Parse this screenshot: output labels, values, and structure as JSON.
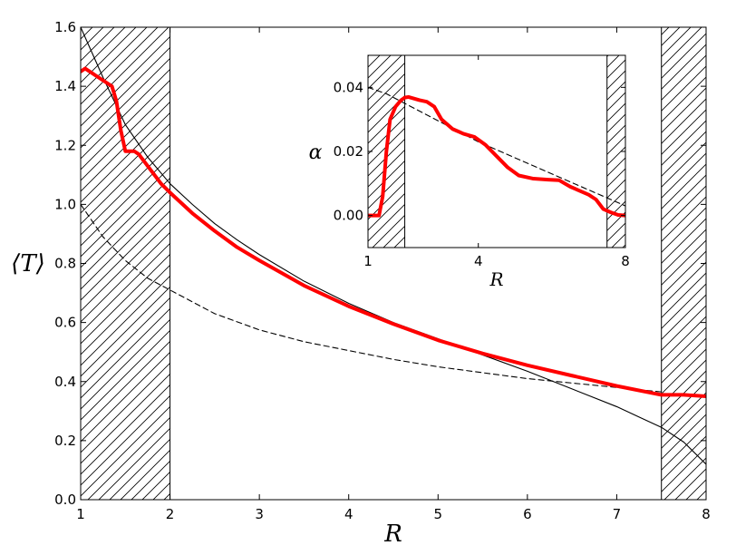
{
  "chart_data": [
    {
      "type": "line",
      "name": "main-plot",
      "xlabel": "R",
      "ylabel": "⟨T⟩",
      "xlim": [
        1,
        8
      ],
      "ylim": [
        0,
        1.6
      ],
      "xticks": [
        1,
        2,
        3,
        4,
        5,
        6,
        7,
        8
      ],
      "xtick_labels": [
        "1",
        "2",
        "3",
        "4",
        "5",
        "6",
        "7",
        "8"
      ],
      "yticks": [
        0.0,
        0.2,
        0.4,
        0.6,
        0.8,
        1.0,
        1.2,
        1.4,
        1.6
      ],
      "ytick_labels": [
        "0.0",
        "0.2",
        "0.4",
        "0.6",
        "0.8",
        "1.0",
        "1.2",
        "1.4",
        "1.6"
      ],
      "grid": false,
      "hatched_regions": [
        [
          1,
          2
        ],
        [
          7.5,
          8
        ]
      ],
      "series": [
        {
          "style": "thin-solid-black",
          "color": "#000000",
          "x": [
            1.0,
            1.25,
            1.5,
            1.75,
            2.0,
            2.25,
            2.5,
            2.75,
            3.0,
            3.5,
            4.0,
            4.5,
            5.0,
            5.5,
            6.0,
            6.5,
            7.0,
            7.25,
            7.5,
            7.75,
            8.0
          ],
          "y": [
            1.6,
            1.43,
            1.27,
            1.16,
            1.07,
            1.0,
            0.935,
            0.88,
            0.83,
            0.74,
            0.665,
            0.6,
            0.545,
            0.49,
            0.435,
            0.375,
            0.315,
            0.28,
            0.245,
            0.195,
            0.12
          ]
        },
        {
          "style": "thin-dashed-black",
          "color": "#000000",
          "x": [
            1.0,
            1.25,
            1.5,
            1.75,
            2.0,
            2.5,
            3.0,
            3.5,
            4.0,
            4.5,
            5.0,
            5.5,
            6.0,
            6.5,
            7.0,
            7.5
          ],
          "y": [
            1.0,
            0.89,
            0.81,
            0.75,
            0.71,
            0.63,
            0.575,
            0.535,
            0.505,
            0.475,
            0.45,
            0.43,
            0.41,
            0.395,
            0.38,
            0.365
          ]
        },
        {
          "style": "thick-solid-red",
          "color": "#ff0000",
          "x": [
            1.0,
            1.05,
            1.1,
            1.2,
            1.3,
            1.35,
            1.4,
            1.45,
            1.5,
            1.55,
            1.6,
            1.65,
            1.7,
            1.8,
            1.9,
            2.0,
            2.25,
            2.5,
            2.75,
            3.0,
            3.5,
            4.0,
            4.5,
            5.0,
            5.5,
            6.0,
            6.5,
            7.0,
            7.5,
            7.75,
            8.0
          ],
          "y": [
            1.45,
            1.46,
            1.45,
            1.43,
            1.41,
            1.4,
            1.35,
            1.25,
            1.18,
            1.18,
            1.18,
            1.17,
            1.15,
            1.11,
            1.07,
            1.04,
            0.97,
            0.91,
            0.855,
            0.81,
            0.725,
            0.655,
            0.595,
            0.54,
            0.495,
            0.455,
            0.42,
            0.385,
            0.355,
            0.355,
            0.35
          ]
        }
      ]
    },
    {
      "type": "line",
      "name": "inset-plot",
      "xlabel": "R",
      "ylabel": "α",
      "xlim": [
        1,
        8
      ],
      "ylim": [
        -0.01,
        0.05
      ],
      "xticks": [
        1,
        4,
        8
      ],
      "xtick_labels": [
        "1",
        "4",
        "8"
      ],
      "yticks": [
        0.0,
        0.02,
        0.04
      ],
      "ytick_labels": [
        "0.00",
        "0.02",
        "0.04"
      ],
      "grid": false,
      "hatched_regions": [
        [
          1,
          2
        ],
        [
          7.5,
          8
        ]
      ],
      "series": [
        {
          "style": "thin-dashed-black",
          "color": "#000000",
          "x": [
            1.0,
            1.5,
            2.0,
            2.5,
            3.0,
            3.5,
            4.0,
            4.5,
            5.0,
            5.5,
            6.0,
            6.5,
            7.0,
            7.5,
            8.0
          ],
          "y": [
            0.04,
            0.038,
            0.035,
            0.032,
            0.029,
            0.026,
            0.023,
            0.0205,
            0.018,
            0.0155,
            0.013,
            0.0105,
            0.008,
            0.0055,
            0.003
          ]
        },
        {
          "style": "thick-solid-red",
          "color": "#ff0000",
          "x": [
            1.0,
            1.3,
            1.4,
            1.5,
            1.6,
            1.75,
            1.9,
            2.0,
            2.1,
            2.25,
            2.4,
            2.6,
            2.8,
            3.0,
            3.3,
            3.6,
            3.9,
            4.2,
            4.5,
            4.8,
            5.1,
            5.5,
            5.9,
            6.2,
            6.5,
            6.8,
            7.0,
            7.2,
            7.4,
            7.6,
            7.8,
            8.0
          ],
          "y": [
            0.0,
            0.0,
            0.006,
            0.02,
            0.03,
            0.034,
            0.036,
            0.0368,
            0.037,
            0.0365,
            0.036,
            0.0355,
            0.034,
            0.03,
            0.027,
            0.0255,
            0.0245,
            0.022,
            0.0185,
            0.015,
            0.0125,
            0.0115,
            0.0112,
            0.011,
            0.009,
            0.0075,
            0.0065,
            0.005,
            0.002,
            0.001,
            0.0002,
            0.0
          ]
        }
      ]
    }
  ]
}
